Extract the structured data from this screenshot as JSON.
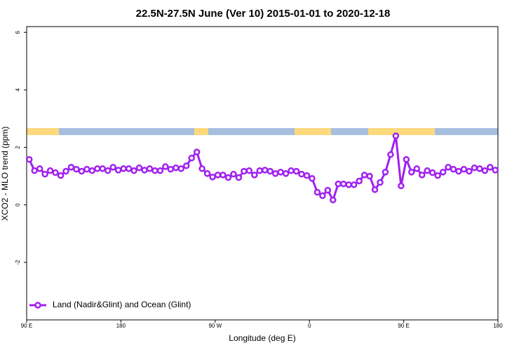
{
  "chart_data": {
    "type": "line",
    "title": "22.5N-27.5N June (Ver 10)   2015-01-01 to 2020-12-18",
    "xlabel": "Longitude (deg E)",
    "ylabel": "XCO2 - MLO trend (ppm)",
    "xlim": [
      90,
      540
    ],
    "ylim": [
      -4,
      6.2
    ],
    "xticks": [
      {
        "value": 90,
        "label": "90 E"
      },
      180,
      {
        "value": 270,
        "label": "90 W"
      },
      {
        "value": 360,
        "label": "0"
      },
      {
        "value": 450,
        "label": "90 E"
      },
      {
        "value": 540,
        "label": "180"
      }
    ],
    "yticks": [
      -2,
      0,
      2,
      4,
      6
    ],
    "legend": "bottom-left",
    "x": [
      92.5,
      97.5,
      102.5,
      107.5,
      112.5,
      117.5,
      122.5,
      127.5,
      132.5,
      137.5,
      142.5,
      147.5,
      152.5,
      157.5,
      162.5,
      167.5,
      172.5,
      177.5,
      182.5,
      187.5,
      192.5,
      197.5,
      202.5,
      207.5,
      212.5,
      217.5,
      222.5,
      227.5,
      232.5,
      237.5,
      242.5,
      247.5,
      252.5,
      257.5,
      262.5,
      267.5,
      272.5,
      277.5,
      282.5,
      287.5,
      292.5,
      297.5,
      302.5,
      307.5,
      312.5,
      317.5,
      322.5,
      327.5,
      332.5,
      337.5,
      342.5,
      347.5,
      352.5,
      357.5,
      362.5,
      367.5,
      372.5,
      377.5,
      382.5,
      387.5,
      392.5,
      397.5,
      402.5,
      407.5,
      412.5,
      417.5,
      422.5,
      427.5,
      432.5,
      437.5,
      442.5,
      447.5,
      452.5,
      457.5,
      462.5,
      467.5,
      472.5,
      477.5,
      482.5,
      487.5,
      492.5,
      497.5,
      502.5,
      507.5,
      512.5,
      517.5,
      522.5,
      527.5,
      532.5,
      537.5
    ],
    "series": [
      {
        "name": "Land (Nadir&Glint) and Ocean (Glint)",
        "color": "#a020f0",
        "values": [
          1.58,
          1.19,
          1.26,
          1.07,
          1.19,
          1.12,
          1.02,
          1.17,
          1.31,
          1.24,
          1.17,
          1.24,
          1.19,
          1.26,
          1.26,
          1.19,
          1.31,
          1.21,
          1.26,
          1.26,
          1.19,
          1.29,
          1.21,
          1.26,
          1.19,
          1.19,
          1.33,
          1.24,
          1.29,
          1.26,
          1.36,
          1.63,
          1.84,
          1.26,
          1.09,
          0.97,
          1.04,
          1.04,
          0.95,
          1.07,
          0.95,
          1.17,
          1.19,
          1.04,
          1.19,
          1.21,
          1.17,
          1.09,
          1.14,
          1.09,
          1.19,
          1.17,
          1.07,
          1.02,
          0.92,
          0.44,
          0.32,
          0.51,
          0.17,
          0.73,
          0.73,
          0.7,
          0.7,
          0.83,
          1.04,
          1.0,
          0.53,
          0.78,
          1.14,
          1.75,
          2.4,
          0.66,
          1.58,
          1.14,
          1.26,
          1.04,
          1.19,
          1.12,
          1.02,
          1.14,
          1.31,
          1.24,
          1.17,
          1.24,
          1.17,
          1.29,
          1.26,
          1.19,
          1.31,
          1.21
        ]
      }
    ]
  }
}
